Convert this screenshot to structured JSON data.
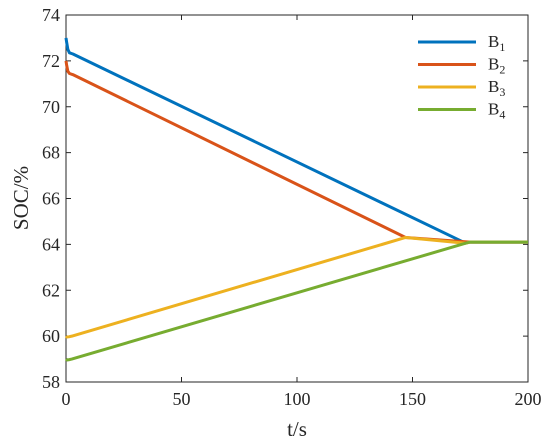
{
  "chart_data": {
    "type": "line",
    "title": "",
    "xlabel": "t/s",
    "ylabel": "SOC/%",
    "xlim": [
      0,
      200
    ],
    "ylim": [
      58,
      74
    ],
    "xticks": [
      0,
      50,
      100,
      150,
      200
    ],
    "yticks": [
      58,
      60,
      62,
      64,
      66,
      68,
      70,
      72,
      74
    ],
    "grid": false,
    "legend_position": "top-right",
    "series": [
      {
        "name": "B",
        "subscript": "1",
        "color": "#0072BD",
        "x": [
          0,
          0.3,
          0.8,
          1.5,
          3,
          172,
          175,
          200
        ],
        "y": [
          73.0,
          72.8,
          72.5,
          72.35,
          72.3,
          64.1,
          64.1,
          64.1
        ]
      },
      {
        "name": "B",
        "subscript": "2",
        "color": "#D95319",
        "x": [
          0,
          0.3,
          0.8,
          1.5,
          3,
          147,
          175,
          200
        ],
        "y": [
          72.0,
          71.8,
          71.55,
          71.45,
          71.4,
          64.3,
          64.1,
          64.1
        ]
      },
      {
        "name": "B",
        "subscript": "3",
        "color": "#EDB120",
        "x": [
          0,
          0.4,
          1.2,
          2.5,
          147,
          173,
          175,
          200
        ],
        "y": [
          60.0,
          59.96,
          59.97,
          60.0,
          64.3,
          64.05,
          64.1,
          64.1
        ]
      },
      {
        "name": "B",
        "subscript": "4",
        "color": "#77AC30",
        "x": [
          0,
          0.4,
          1.2,
          2.5,
          173,
          175,
          200
        ],
        "y": [
          59.0,
          58.96,
          58.97,
          59.0,
          64.05,
          64.1,
          64.1
        ]
      }
    ]
  }
}
